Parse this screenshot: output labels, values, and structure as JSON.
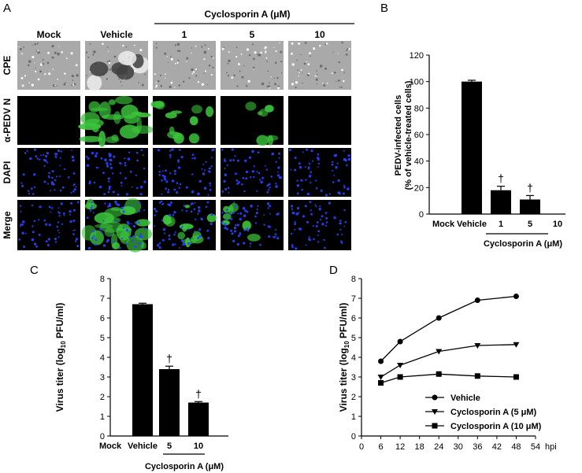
{
  "panels": {
    "A": {
      "letter": "A",
      "treatment_header": "Cyclosporin A (μM)",
      "columns": [
        "Mock",
        "Vehicle",
        "1",
        "5",
        "10"
      ],
      "rows": [
        "CPE",
        "α-PEDV N",
        "DAPI",
        "Merge"
      ]
    },
    "B": {
      "letter": "B"
    },
    "C": {
      "letter": "C"
    },
    "D": {
      "letter": "D"
    }
  },
  "colors": {
    "bar": "#000000",
    "cpe_bg": "#a9a9a9",
    "green": "#3cc43c",
    "blue": "#2a44ff",
    "dark": "#000000"
  },
  "chart_data": [
    {
      "panel": "B",
      "type": "bar",
      "categories": [
        "Mock",
        "Vehicle",
        "1",
        "5",
        "10"
      ],
      "values": [
        0,
        100,
        18,
        11,
        0
      ],
      "errors": [
        0,
        1,
        3,
        3,
        0
      ],
      "annotations": [
        "",
        "",
        "†",
        "†",
        ""
      ],
      "ylabel_line1": "PEDV-infected cells",
      "ylabel_line2": "(% of vehicle-treated cells)",
      "xgroup_label": "Cyclosporin A (μM)",
      "ylim": [
        0,
        120
      ],
      "yticks": [
        "0",
        "20",
        "40",
        "60",
        "80",
        "100",
        "120"
      ]
    },
    {
      "panel": "C",
      "type": "bar",
      "categories": [
        "Mock",
        "Vehicle",
        "5",
        "10"
      ],
      "values": [
        0,
        6.7,
        3.4,
        1.7
      ],
      "errors": [
        0,
        0.05,
        0.15,
        0.05
      ],
      "annotations": [
        "",
        "",
        "†",
        "†"
      ],
      "ylabel_pre": "Virus titer (log",
      "ylabel_sub": "10",
      "ylabel_post": " PFU/ml)",
      "xgroup_label": "Cyclosporin A (μM)",
      "ylim": [
        0,
        8
      ],
      "yticks": [
        "0",
        "1",
        "2",
        "3",
        "4",
        "5",
        "6",
        "7",
        "8"
      ]
    },
    {
      "panel": "D",
      "type": "line",
      "x": [
        6,
        12,
        24,
        36,
        48
      ],
      "series": [
        {
          "name": "Vehicle",
          "marker": "circle",
          "values": [
            3.8,
            4.8,
            6.0,
            6.9,
            7.1
          ]
        },
        {
          "name": "Cyclosporin A (5 μM)",
          "marker": "triangle-down",
          "values": [
            3.0,
            3.6,
            4.3,
            4.6,
            4.65
          ]
        },
        {
          "name": "Cyclosporin A (10 μM)",
          "marker": "square",
          "values": [
            2.7,
            3.0,
            3.15,
            3.05,
            3.0
          ]
        }
      ],
      "ylabel_pre": "Virus titer (log",
      "ylabel_sub": "10",
      "ylabel_post": " PFU/ml)",
      "xunit": "hpi",
      "xlim": [
        0,
        54
      ],
      "ylim": [
        0,
        8
      ],
      "xticks": [
        "0",
        "6",
        "12",
        "18",
        "24",
        "30",
        "36",
        "42",
        "48",
        "54"
      ],
      "yticks": [
        "0",
        "1",
        "2",
        "3",
        "4",
        "5",
        "6",
        "7",
        "8"
      ],
      "legend_position": "bottom-right"
    }
  ]
}
